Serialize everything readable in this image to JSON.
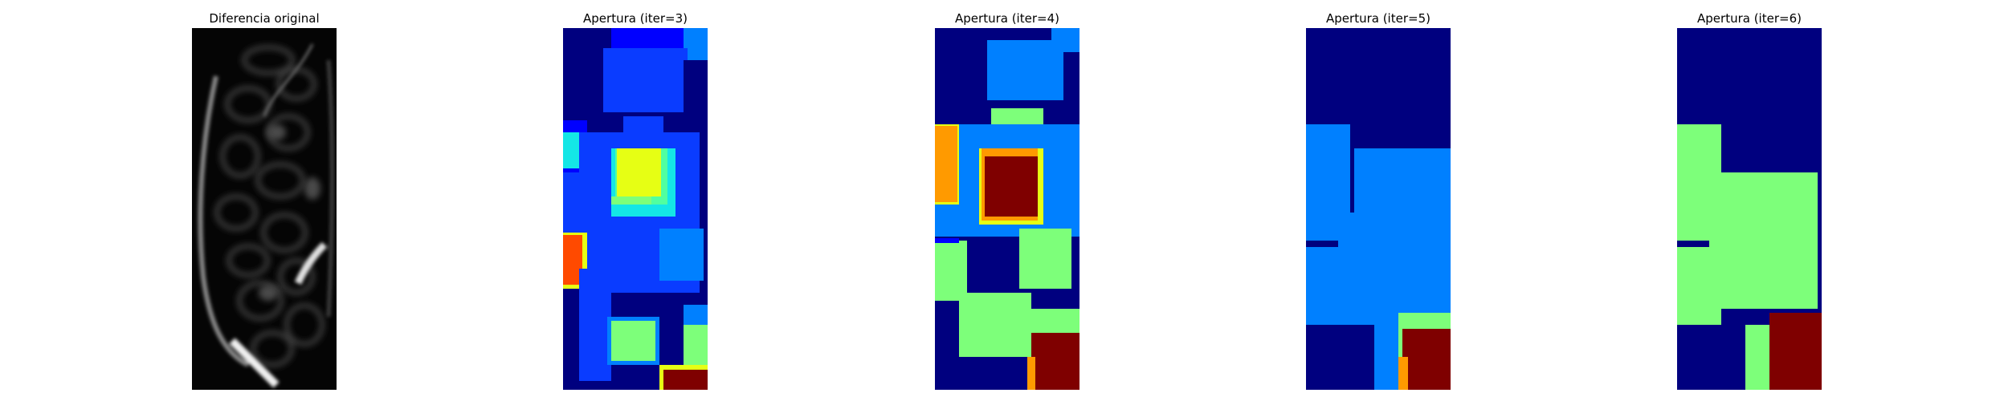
{
  "figure": {
    "panels": [
      {
        "title": "Diferencia original",
        "colormap": "gray"
      },
      {
        "title": "Apertura (iter=3)",
        "colormap": "jet"
      },
      {
        "title": "Apertura (iter=4)",
        "colormap": "jet"
      },
      {
        "title": "Apertura (iter=5)",
        "colormap": "jet"
      },
      {
        "title": "Apertura (iter=6)",
        "colormap": "jet"
      }
    ],
    "colors": {
      "jet_dark_blue": "#00007f",
      "jet_blue": "#0000ff",
      "jet_medium_blue": "#0a3cff",
      "jet_azure": "#0080ff",
      "jet_cyan": "#14e6e6",
      "jet_aquamarine": "#50ffa0",
      "jet_light_green": "#7dff7a",
      "jet_yellow": "#e6ff14",
      "jet_orange": "#ff9a00",
      "jet_red_orange": "#ff4a00",
      "jet_dark_red": "#7f0000",
      "image_black": "#050505",
      "image_gray": "#8a8a8a",
      "image_white": "#f0f0f0"
    }
  }
}
